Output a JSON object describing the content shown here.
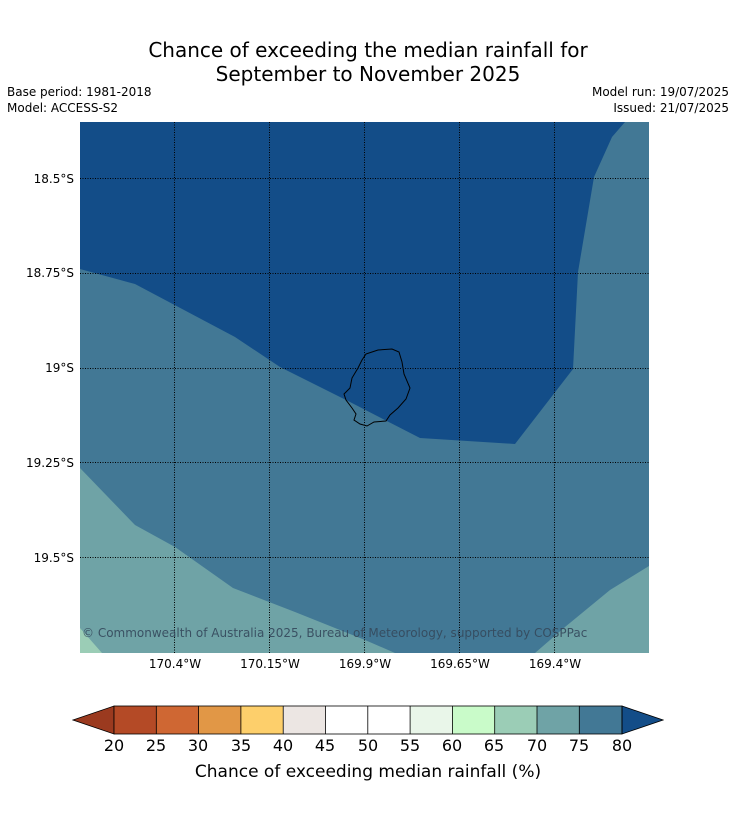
{
  "title_line1": "Chance of exceeding the median rainfall for",
  "title_line2": "September to November 2025",
  "meta": {
    "base_period": "Base period: 1981-2018",
    "model": "Model: ACCESS-S2",
    "model_run": "Model run: 19/07/2025",
    "issued": "Issued: 21/07/2025"
  },
  "latitude_labels": [
    "18.5°S",
    "18.75°S",
    "19°S",
    "19.25°S",
    "19.5°S"
  ],
  "longitude_labels": [
    "170.4°W",
    "170.15°W",
    "169.9°W",
    "169.65°W",
    "169.4°W"
  ],
  "copyright": "© Commonwealth of Australia 2025, Bureau of Meteorology, supported by COSPPac",
  "colorbar": {
    "ticks": [
      "20",
      "25",
      "30",
      "35",
      "40",
      "45",
      "50",
      "55",
      "60",
      "65",
      "70",
      "75",
      "80"
    ],
    "label": "Chance of exceeding median rainfall (%)",
    "colors": {
      "below_20": "#9b3a1f",
      "20-25": "#b44a26",
      "25-30": "#cf6733",
      "30-35": "#e19746",
      "35-40": "#fdcf6b",
      "40-45": "#ece6e3",
      "45-50": "#ffffff",
      "50-55": "#ffffff",
      "55-60": "#e9f6e9",
      "60-65": "#c9fbc9",
      "65-70": "#9bcdb6",
      "70-75": "#6fa3a6",
      "75-80": "#427895",
      "above_80": "#134d88"
    }
  },
  "map_regions": {
    "above_80": "#134d88",
    "75-80": "#427895",
    "70-75": "#6fa3a6",
    "65-70": "#9bcdb6"
  }
}
